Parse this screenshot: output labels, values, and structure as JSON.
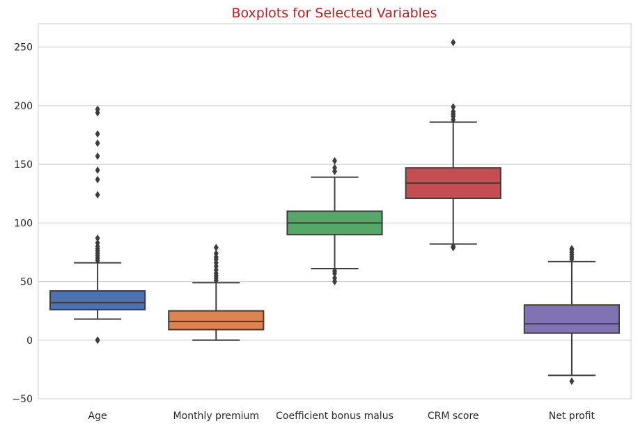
{
  "chart_data": {
    "type": "boxplot",
    "title": "Boxplots for Selected Variables",
    "title_color": "#b22222",
    "xlabel": "",
    "ylabel": "",
    "ylim": [
      -50,
      270
    ],
    "yticks": [
      -50,
      0,
      50,
      100,
      150,
      200,
      250
    ],
    "grid": "horizontal",
    "legend": "none",
    "categories": [
      "Age",
      "Monthly premium",
      "Coefficient bonus malus",
      "CRM score",
      "Net profit"
    ],
    "colors": [
      "#4c72b0",
      "#dd8452",
      "#55a868",
      "#c44e52",
      "#8172b3"
    ],
    "boxes": [
      {
        "name": "Age",
        "whisker_low": 18,
        "q1": 26,
        "median": 32,
        "q3": 42,
        "whisker_high": 66,
        "outliers": [
          0,
          0,
          68,
          70,
          72,
          74,
          76,
          78,
          80,
          83,
          87,
          124,
          137,
          145,
          157,
          168,
          176,
          194,
          197
        ]
      },
      {
        "name": "Monthly premium",
        "whisker_low": 0,
        "q1": 9,
        "median": 16,
        "q3": 25,
        "whisker_high": 49,
        "outliers": [
          51,
          53,
          55,
          57,
          60,
          63,
          66,
          69,
          71,
          74,
          79
        ]
      },
      {
        "name": "Coefficient bonus malus",
        "whisker_low": 61,
        "q1": 90,
        "median": 100,
        "q3": 110,
        "whisker_high": 139,
        "outliers": [
          50,
          53,
          57,
          59,
          144,
          147,
          153
        ]
      },
      {
        "name": "CRM score",
        "whisker_low": 82,
        "q1": 121,
        "median": 134,
        "q3": 147,
        "whisker_high": 186,
        "outliers": [
          79,
          80,
          188,
          191,
          193,
          195,
          199,
          254
        ]
      },
      {
        "name": "Net profit",
        "whisker_low": -30,
        "q1": 6,
        "median": 14,
        "q3": 30,
        "whisker_high": 67,
        "outliers": [
          -35,
          69,
          71,
          73,
          75,
          77,
          78
        ]
      }
    ]
  }
}
